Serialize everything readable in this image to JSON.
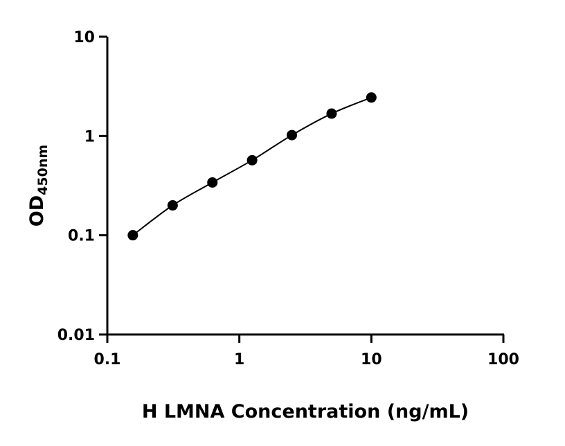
{
  "chart_data": {
    "type": "scatter",
    "title": "",
    "xlabel": "H LMNA Concentration (ng/mL)",
    "ylabel_main": "OD",
    "ylabel_sub": "450nm",
    "xscale": "log",
    "yscale": "log",
    "xlim": [
      0.1,
      100
    ],
    "ylim": [
      0.01,
      10
    ],
    "xticks": [
      0.1,
      1,
      10,
      100
    ],
    "xtick_labels": [
      "0.1",
      "1",
      "10",
      "100"
    ],
    "yticks": [
      0.01,
      0.1,
      1,
      10
    ],
    "ytick_labels": [
      "0.01",
      "0.1",
      "1",
      "10"
    ],
    "grid": false,
    "fit_curve": true,
    "x": [
      0.156,
      0.3125,
      0.625,
      1.25,
      2.5,
      5,
      10
    ],
    "y": [
      0.1,
      0.2,
      0.34,
      0.57,
      1.02,
      1.68,
      2.44
    ],
    "marker_color": "#000000",
    "line_color": "#000000"
  }
}
